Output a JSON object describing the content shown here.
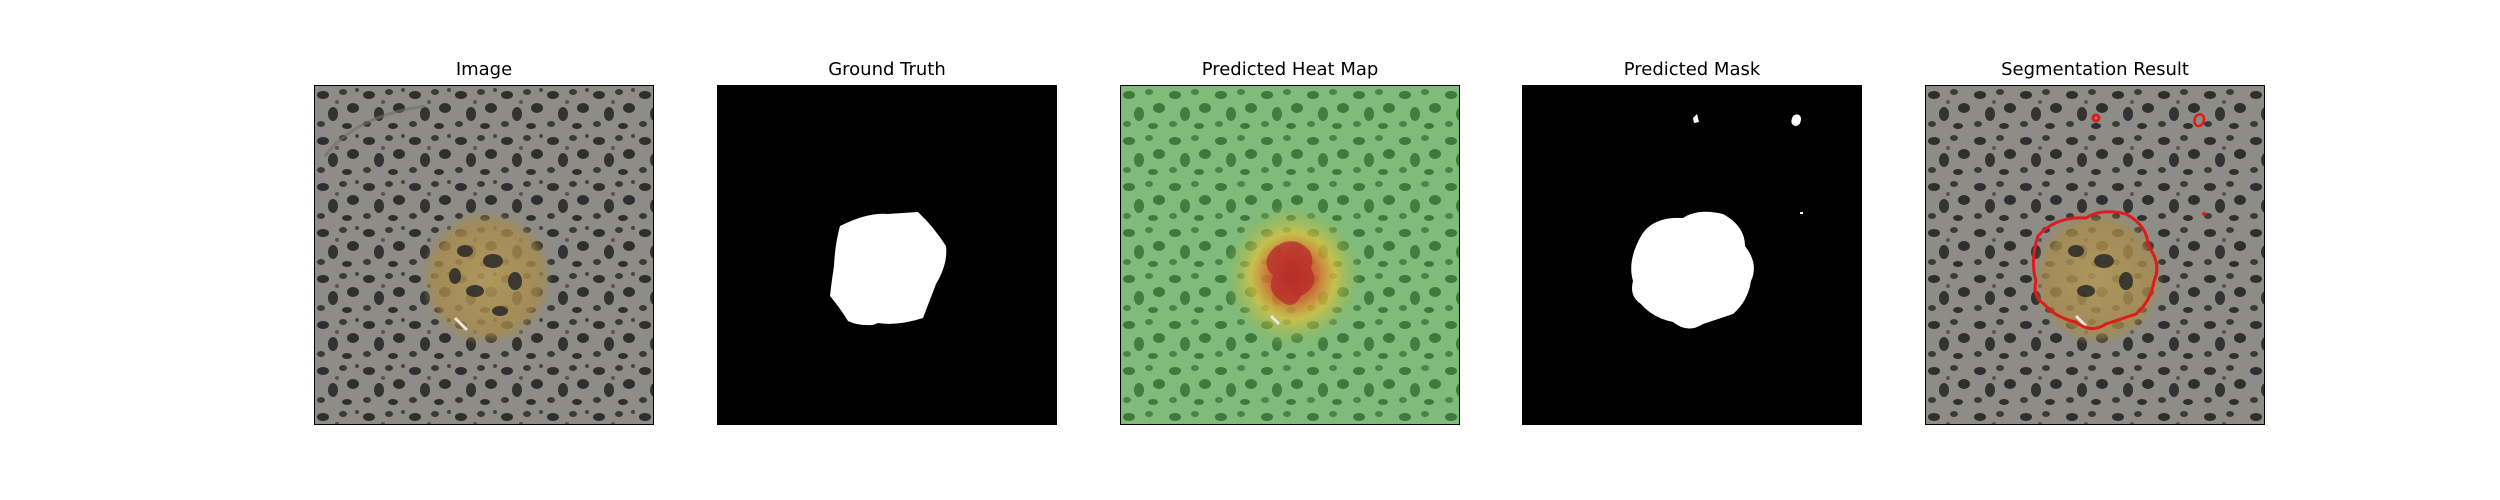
{
  "panels": [
    {
      "title": "Image"
    },
    {
      "title": "Ground Truth"
    },
    {
      "title": "Predicted Heat Map"
    },
    {
      "title": "Predicted Mask"
    },
    {
      "title": "Segmentation Result"
    }
  ],
  "colors": {
    "stone": "#8d8c86",
    "speckle": "#2f2f2f",
    "lesion": "#b59955",
    "mask_background": "#000000",
    "mask_foreground": "#ffffff",
    "heat_low": "#5f9f5c",
    "heat_mid": "#e2c23a",
    "heat_high": "#c9302a",
    "contour": "#e01b1b"
  }
}
